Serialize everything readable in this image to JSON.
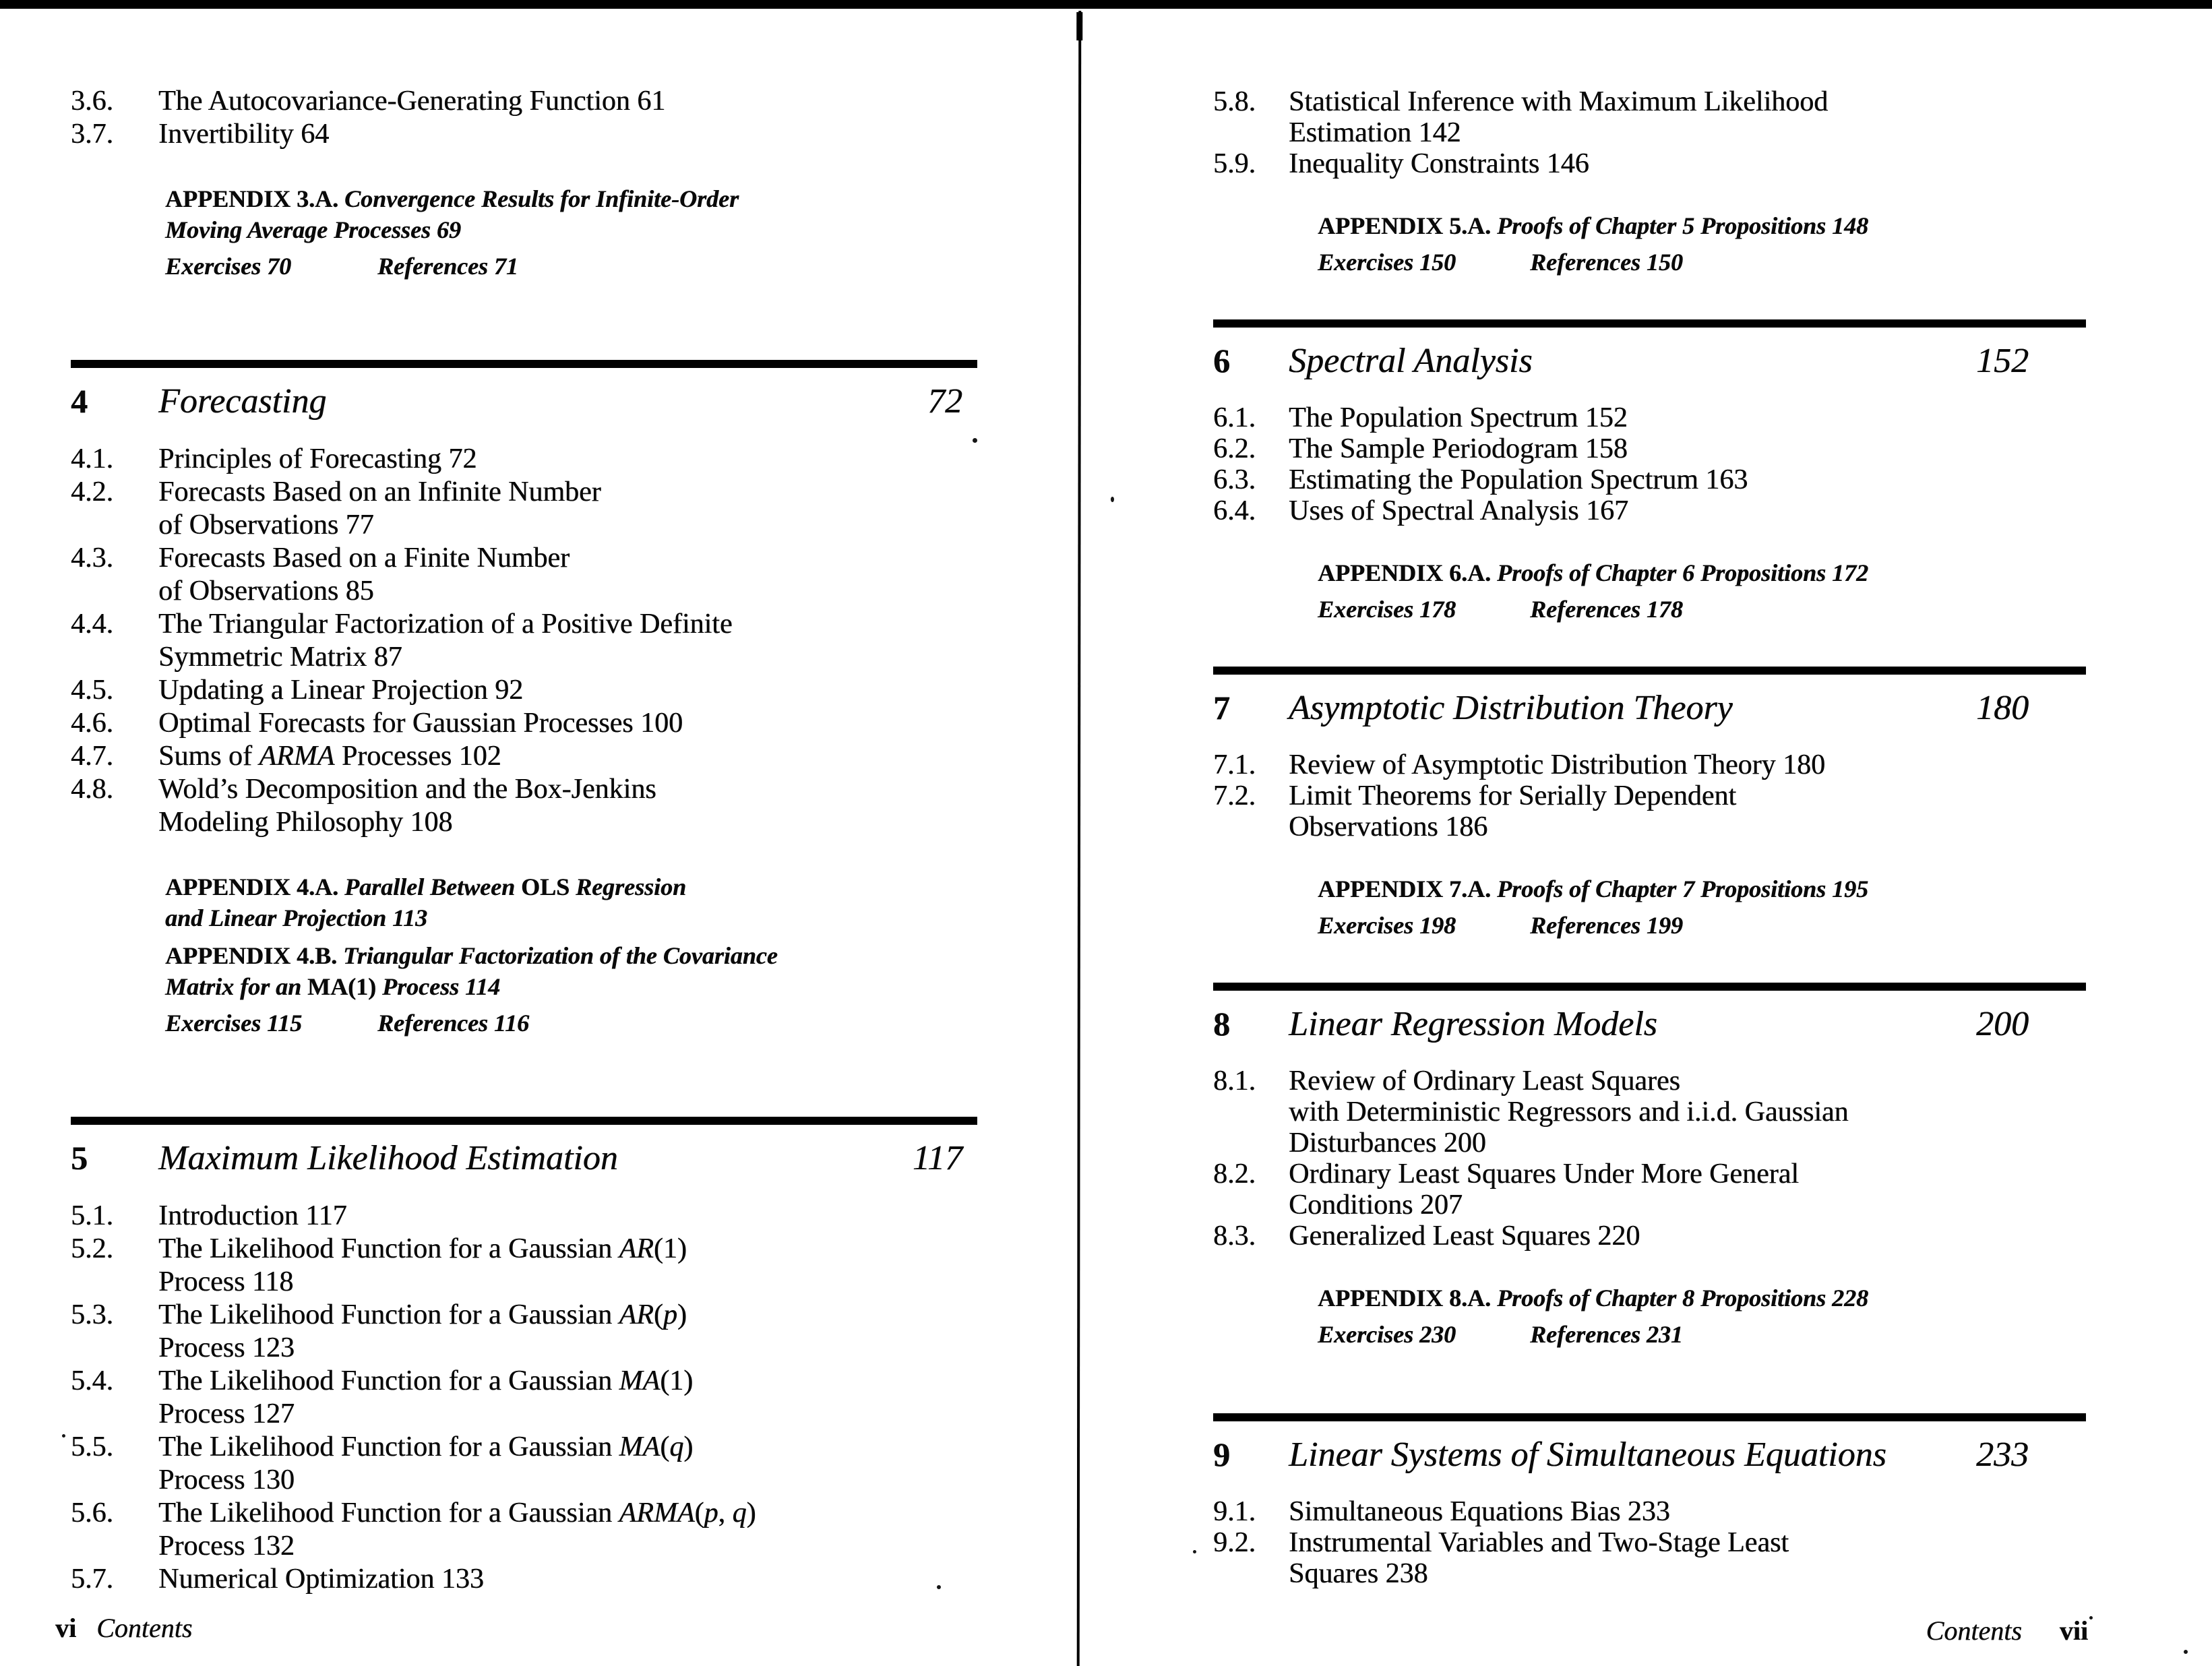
{
  "colors": {
    "paper": "#ffffff",
    "ink": "#0a0a0a",
    "rule": "#000000"
  },
  "left_page": {
    "footer": {
      "page_label": "vi",
      "title": "Contents"
    },
    "sections": [
      {
        "items": [
          {
            "num": "3.6.",
            "lines": [
              "The Autocovariance-Generating Function 61"
            ]
          },
          {
            "num": "3.7.",
            "lines": [
              "Invertibility 64"
            ]
          }
        ],
        "appendices": [
          {
            "label": "APPENDIX 3.A.",
            "lines": [
              "Convergence Results for Infinite-Order",
              "Moving Average Processes 69"
            ]
          }
        ],
        "exercises": "Exercises 70",
        "references": "References 71"
      },
      {
        "chapter": {
          "num": "4",
          "title": "Forecasting",
          "page": "72"
        },
        "items": [
          {
            "num": "4.1.",
            "lines": [
              "Principles of Forecasting 72"
            ]
          },
          {
            "num": "4.2.",
            "lines": [
              "Forecasts Based on an Infinite Number",
              "of Observations 77"
            ]
          },
          {
            "num": "4.3.",
            "lines": [
              "Forecasts Based on a Finite Number",
              "of Observations 85"
            ]
          },
          {
            "num": "4.4.",
            "lines": [
              "The Triangular Factorization of a Positive Definite",
              "Symmetric Matrix 87"
            ]
          },
          {
            "num": "4.5.",
            "lines": [
              "Updating a Linear Projection 92"
            ]
          },
          {
            "num": "4.6.",
            "lines": [
              "Optimal Forecasts for Gaussian Processes 100"
            ]
          },
          {
            "num": "4.7.",
            "lines": [
              "Sums of *ARMA* Processes 102"
            ]
          },
          {
            "num": "4.8.",
            "lines": [
              "Wold’s Decomposition and the Box-Jenkins",
              "Modeling Philosophy 108"
            ]
          }
        ],
        "appendices": [
          {
            "label": "APPENDIX 4.A.",
            "lines": [
              "Parallel Between *OLS* Regression",
              "and Linear Projection 113"
            ]
          },
          {
            "label": "APPENDIX 4.B.",
            "lines": [
              "Triangular Factorization of the Covariance",
              "Matrix for an *MA(1)* Process 114"
            ]
          }
        ],
        "exercises": "Exercises 115",
        "references": "References 116"
      },
      {
        "chapter": {
          "num": "5",
          "title": "Maximum Likelihood Estimation",
          "page": "117"
        },
        "items": [
          {
            "num": "5.1.",
            "lines": [
              "Introduction 117"
            ]
          },
          {
            "num": "5.2.",
            "lines": [
              "The Likelihood Function for a Gaussian *AR*(1)",
              "Process 118"
            ]
          },
          {
            "num": "5.3.",
            "lines": [
              "The Likelihood Function for a Gaussian *AR*(*p*)",
              "Process 123"
            ]
          },
          {
            "num": "5.4.",
            "lines": [
              "The Likelihood Function for a Gaussian *MA*(1)",
              "Process 127"
            ]
          },
          {
            "num": "5.5.",
            "lines": [
              "The Likelihood Function for a Gaussian *MA*(*q*)",
              "Process 130"
            ]
          },
          {
            "num": "5.6.",
            "lines": [
              "The Likelihood Function for a Gaussian *ARMA*(*p*, *q*)",
              "Process 132"
            ]
          },
          {
            "num": "5.7.",
            "lines": [
              "Numerical Optimization 133"
            ]
          }
        ]
      }
    ]
  },
  "right_page": {
    "footer": {
      "title": "Contents",
      "page_label": "vii"
    },
    "sections": [
      {
        "items": [
          {
            "num": "5.8.",
            "lines": [
              "Statistical Inference with Maximum Likelihood",
              "Estimation 142"
            ]
          },
          {
            "num": "5.9.",
            "lines": [
              "Inequality Constraints 146"
            ]
          }
        ],
        "appendices": [
          {
            "label": "APPENDIX 5.A.",
            "lines": [
              "Proofs of Chapter 5 Propositions 148"
            ]
          }
        ],
        "exercises": "Exercises 150",
        "references": "References 150"
      },
      {
        "chapter": {
          "num": "6",
          "title": "Spectral Analysis",
          "page": "152"
        },
        "items": [
          {
            "num": "6.1.",
            "lines": [
              "The Population Spectrum 152"
            ]
          },
          {
            "num": "6.2.",
            "lines": [
              "The Sample Periodogram 158"
            ]
          },
          {
            "num": "6.3.",
            "lines": [
              "Estimating the Population Spectrum 163"
            ]
          },
          {
            "num": "6.4.",
            "lines": [
              "Uses of Spectral Analysis 167"
            ]
          }
        ],
        "appendices": [
          {
            "label": "APPENDIX 6.A.",
            "lines": [
              "Proofs of Chapter 6 Propositions 172"
            ]
          }
        ],
        "exercises": "Exercises 178",
        "references": "References 178"
      },
      {
        "chapter": {
          "num": "7",
          "title": "Asymptotic Distribution Theory",
          "page": "180"
        },
        "items": [
          {
            "num": "7.1.",
            "lines": [
              "Review of Asymptotic Distribution Theory 180"
            ]
          },
          {
            "num": "7.2.",
            "lines": [
              "Limit Theorems for Serially Dependent",
              "Observations 186"
            ]
          }
        ],
        "appendices": [
          {
            "label": "APPENDIX 7.A.",
            "lines": [
              "Proofs of Chapter 7 Propositions 195"
            ]
          }
        ],
        "exercises": "Exercises 198",
        "references": "References 199"
      },
      {
        "chapter": {
          "num": "8",
          "title": "Linear Regression Models",
          "page": "200"
        },
        "items": [
          {
            "num": "8.1.",
            "lines": [
              "Review of Ordinary Least Squares",
              "with Deterministic Regressors and i.i.d. Gaussian",
              "Disturbances 200"
            ]
          },
          {
            "num": "8.2.",
            "lines": [
              "Ordinary Least Squares Under More General",
              "Conditions 207"
            ]
          },
          {
            "num": "8.3.",
            "lines": [
              "Generalized Least Squares 220"
            ]
          }
        ],
        "appendices": [
          {
            "label": "APPENDIX 8.A.",
            "lines": [
              "Proofs of Chapter 8 Propositions 228"
            ]
          }
        ],
        "exercises": "Exercises 230",
        "references": "References 231"
      },
      {
        "chapter": {
          "num": "9",
          "title": "Linear Systems of Simultaneous Equations",
          "page": "233"
        },
        "items": [
          {
            "num": "9.1.",
            "lines": [
              "Simultaneous Equations Bias 233"
            ]
          },
          {
            "num": "9.2.",
            "lines": [
              "Instrumental Variables and Two-Stage Least",
              "Squares 238"
            ]
          }
        ]
      }
    ]
  }
}
